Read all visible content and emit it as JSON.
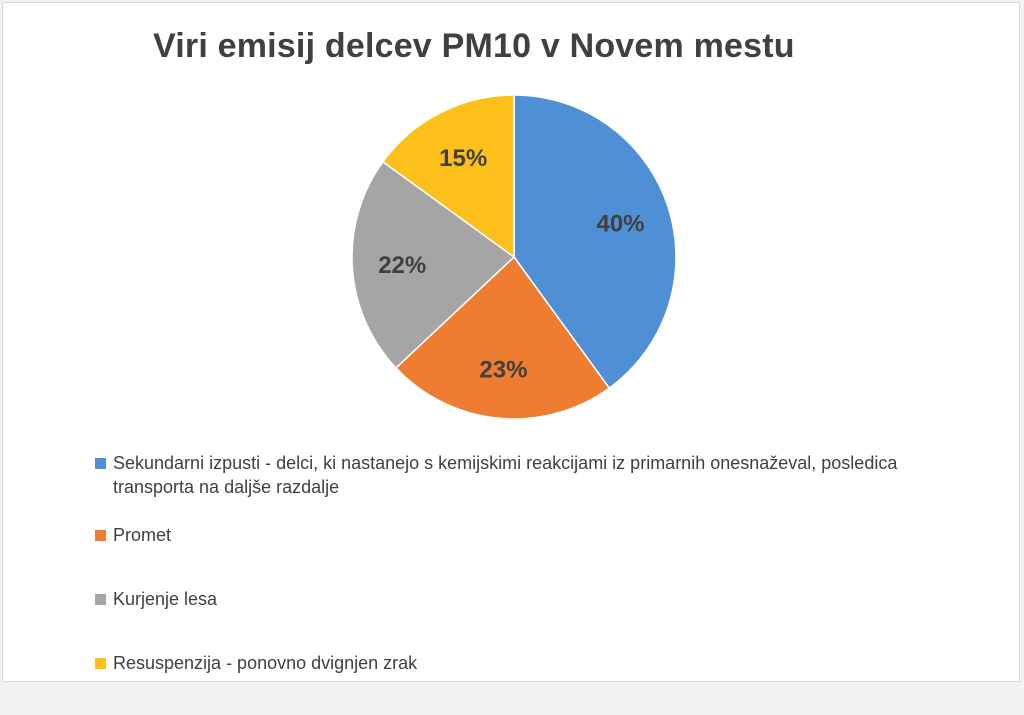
{
  "chart_data": {
    "type": "pie",
    "title": "Viri emisij delcev PM10 v Novem mestu",
    "categories": [
      "Sekundarni izpusti - delci, ki nastanejo s kemijskimi reakcijami iz primarnih onesnaževal, posledica transporta na daljše razdalje",
      "Promet",
      "Kurjenje lesa",
      "Resuspenzija - ponovno dvignjen zrak"
    ],
    "values": [
      40,
      23,
      22,
      15
    ],
    "data_labels": [
      "40%",
      "23%",
      "22%",
      "15%"
    ],
    "colors": [
      "#4f8fd6",
      "#ee7d31",
      "#a5a5a5",
      "#fdbf1a"
    ],
    "legend_position": "bottom"
  }
}
